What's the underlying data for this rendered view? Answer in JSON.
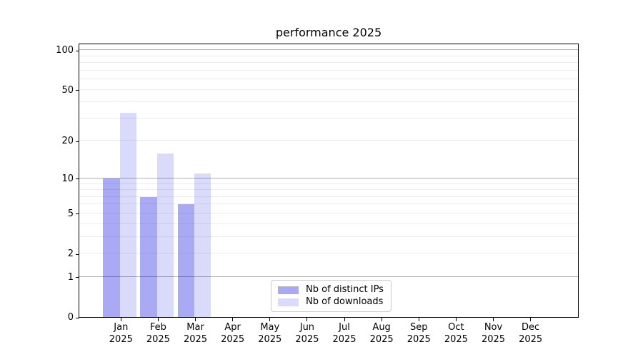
{
  "title": "performance 2025",
  "chart_data": {
    "type": "bar",
    "title": "performance 2025",
    "categories": [
      "Jan",
      "Feb",
      "Mar",
      "Apr",
      "May",
      "Jun",
      "Jul",
      "Aug",
      "Sep",
      "Oct",
      "Nov",
      "Dec"
    ],
    "category_year": "2025",
    "series": [
      {
        "name": "Nb of distinct IPs",
        "color": "rgba(10,10,224,0.35)",
        "values": [
          10,
          7,
          6,
          0,
          0,
          0,
          0,
          0,
          0,
          0,
          0,
          0
        ]
      },
      {
        "name": "Nb of downloads",
        "color": "rgba(10,10,224,0.15)",
        "values": [
          33,
          16,
          11,
          0,
          0,
          0,
          0,
          0,
          0,
          0,
          0,
          0
        ]
      }
    ],
    "xlabel": "",
    "ylabel": "",
    "y_axis": {
      "scale": "log1p",
      "tick_values": [
        0,
        1,
        2,
        5,
        10,
        20,
        50,
        100
      ],
      "tick_labels": [
        "0",
        "1",
        "2",
        "5",
        "10",
        "20",
        "50",
        "100"
      ],
      "major_grid_values": [
        1,
        10,
        100
      ],
      "minor_grid_values": [
        2,
        3,
        4,
        5,
        6,
        7,
        8,
        9,
        20,
        30,
        40,
        50,
        60,
        70,
        80,
        90
      ],
      "top_value": 113
    },
    "grid": true,
    "legend": {
      "position": "lower center",
      "labels": [
        "Nb of distinct IPs",
        "Nb of downloads"
      ]
    },
    "colors": {
      "major_gridline": "#b0b0b0",
      "minor_gridline": "#ececec",
      "axis": "#000000",
      "legend_border": "#cccccc"
    }
  }
}
